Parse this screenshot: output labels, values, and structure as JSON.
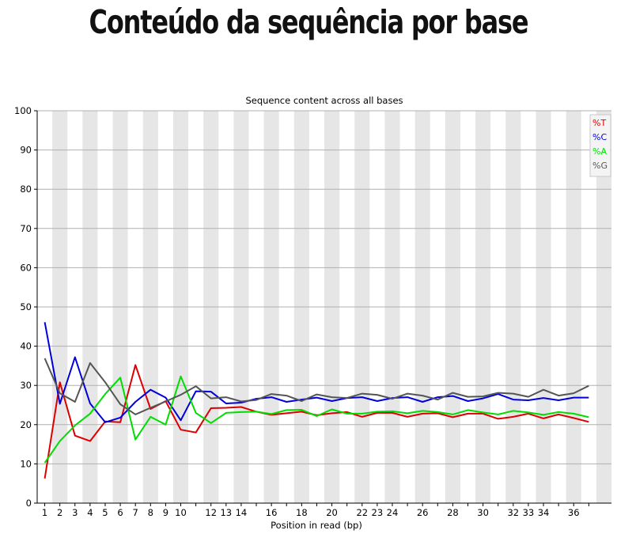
{
  "page": {
    "title": "Conteúdo da sequência por base"
  },
  "colors": {
    "T": "#dd0000",
    "C": "#0000dd",
    "A": "#00dd00",
    "G": "#555555",
    "band": "#e6e6e6"
  },
  "chart_data": {
    "type": "line",
    "title": "Sequence content across all bases",
    "xlabel": "Position in read (bp)",
    "ylabel": "",
    "ylim": [
      0,
      100
    ],
    "yticks": [
      0,
      10,
      20,
      30,
      40,
      50,
      60,
      70,
      80,
      90,
      100
    ],
    "grid": true,
    "legend": "top-right",
    "x": [
      "1",
      "2",
      "3",
      "4",
      "5",
      "6",
      "7",
      "8",
      "9",
      "10",
      "11",
      "12",
      "13",
      "14",
      "15",
      "16",
      "17",
      "18",
      "19",
      "20",
      "21",
      "22",
      "23",
      "24",
      "25",
      "26",
      "27",
      "28",
      "29",
      "30",
      "31",
      "32",
      "33",
      "34",
      "35",
      "36",
      "37"
    ],
    "xtick_labels": [
      "1",
      "2",
      "3",
      "4",
      "5",
      "6",
      "7",
      "8",
      "9",
      "10",
      "",
      "12",
      "13",
      "14",
      "",
      "16",
      "",
      "18",
      "",
      "20",
      "",
      "22",
      "23",
      "24",
      "",
      "26",
      "",
      "28",
      "",
      "30",
      "",
      "32",
      "33",
      "34",
      "",
      "36",
      ""
    ],
    "series": [
      {
        "name": "%T",
        "color": "#dd0000",
        "values": [
          6.3,
          30.8,
          17.2,
          15.8,
          20.8,
          20.6,
          35.2,
          24.0,
          26.0,
          18.7,
          18.0,
          24.2,
          24.3,
          24.5,
          23.3,
          22.5,
          22.9,
          23.3,
          22.4,
          22.9,
          23.2,
          22.0,
          23.0,
          23.0,
          22.0,
          22.8,
          22.9,
          21.9,
          22.8,
          22.8,
          21.5,
          22.0,
          22.8,
          21.6,
          22.6,
          21.7,
          20.7
        ]
      },
      {
        "name": "%C",
        "color": "#0000dd",
        "values": [
          46.1,
          25.3,
          37.2,
          25.4,
          20.6,
          21.8,
          25.8,
          28.9,
          26.9,
          21.1,
          28.5,
          28.4,
          25.4,
          25.6,
          26.6,
          27.0,
          25.8,
          26.4,
          26.9,
          26.0,
          26.8,
          27.0,
          26.0,
          26.8,
          27.0,
          25.8,
          27.0,
          27.3,
          26.0,
          26.7,
          27.8,
          26.4,
          26.2,
          26.8,
          26.2,
          26.9,
          26.9
        ]
      },
      {
        "name": "%A",
        "color": "#00dd00",
        "values": [
          10.3,
          15.8,
          19.8,
          22.8,
          27.8,
          32.0,
          16.2,
          22.0,
          20.0,
          32.3,
          23.0,
          20.4,
          23.0,
          23.2,
          23.3,
          22.7,
          23.7,
          23.8,
          22.2,
          23.9,
          22.8,
          22.8,
          23.3,
          23.4,
          22.9,
          23.5,
          23.2,
          22.6,
          23.7,
          23.1,
          22.6,
          23.5,
          23.1,
          22.5,
          23.2,
          22.8,
          21.9
        ]
      },
      {
        "name": "%G",
        "color": "#555555",
        "values": [
          36.9,
          28.0,
          25.8,
          35.7,
          30.8,
          25.2,
          22.6,
          24.3,
          25.9,
          27.6,
          29.8,
          26.7,
          27.0,
          25.9,
          26.3,
          27.8,
          27.4,
          26.0,
          27.7,
          27.0,
          26.8,
          27.9,
          27.6,
          26.6,
          27.9,
          27.4,
          26.4,
          28.1,
          27.1,
          27.2,
          28.1,
          27.9,
          27.1,
          28.9,
          27.4,
          28.0,
          29.9
        ]
      }
    ]
  }
}
